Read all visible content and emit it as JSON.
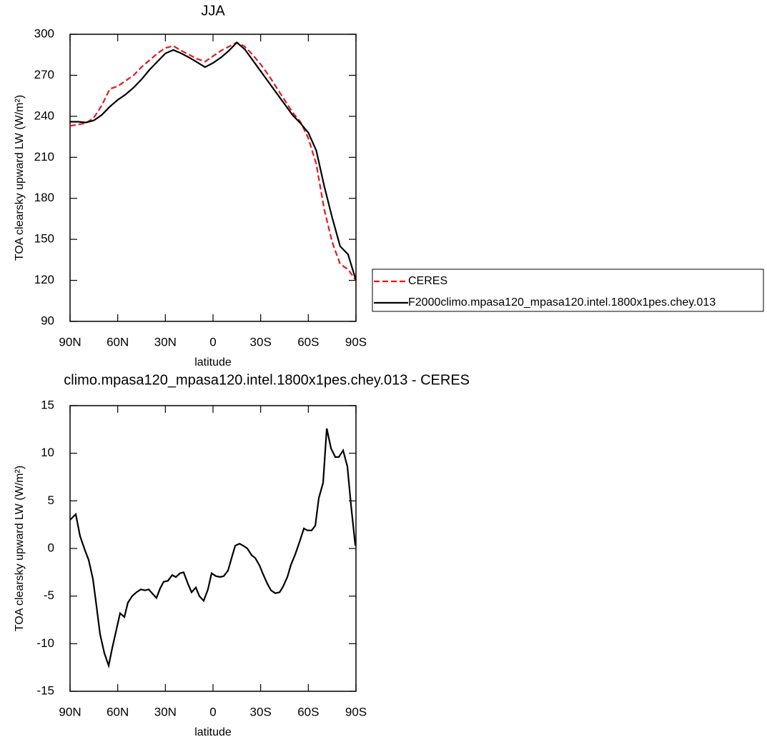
{
  "chart_data": [
    {
      "type": "line",
      "title": "JJA",
      "xlabel": "latitude",
      "ylabel": "TOA clearsky upward LW (W/m²)",
      "xlim": [
        90,
        -90
      ],
      "xticks": [
        {
          "value": 90,
          "label": "90N"
        },
        {
          "value": 60,
          "label": "60N"
        },
        {
          "value": 30,
          "label": "30N"
        },
        0,
        {
          "value": -30,
          "label": "30S"
        },
        {
          "value": -60,
          "label": "60S"
        },
        {
          "value": -90,
          "label": "90S"
        }
      ],
      "ylim": [
        90,
        300
      ],
      "yticks": [
        90,
        120,
        150,
        180,
        210,
        240,
        270,
        300
      ],
      "legend": "right",
      "x": [
        90,
        85,
        80,
        75,
        70,
        65,
        60,
        55,
        50,
        45,
        40,
        35,
        30,
        25,
        20,
        15,
        10,
        5,
        0,
        -5,
        -10,
        -15,
        -20,
        -25,
        -30,
        -35,
        -40,
        -45,
        -50,
        -55,
        -60,
        -65,
        -70,
        -75,
        -80,
        -85,
        -90
      ],
      "series": [
        {
          "name": "CERES",
          "color": "#e41a1c",
          "line_style": "dashed",
          "values": [
            233,
            234,
            235,
            239,
            248,
            260,
            262,
            266,
            270,
            276,
            281,
            286,
            290,
            291.5,
            288,
            285,
            282,
            280,
            284,
            288,
            291,
            294,
            291,
            285,
            278,
            270,
            261,
            252,
            243,
            236,
            224,
            205,
            172,
            148,
            132,
            128,
            120
          ]
        },
        {
          "name": "F2000climo.mpasa120_mpasa120.intel.1800x1pes.chey.013",
          "color": "#000000",
          "line_style": "solid",
          "values": [
            236,
            236,
            235.5,
            237,
            241,
            247,
            252,
            256,
            261,
            267,
            274,
            280,
            286,
            288.5,
            286,
            283,
            279.5,
            276,
            279,
            283,
            288,
            294,
            289,
            281,
            273,
            265,
            257,
            249,
            241,
            235,
            228,
            215,
            189,
            166,
            145,
            139,
            120
          ]
        }
      ]
    },
    {
      "type": "line",
      "title": "climo.mpasa120_mpasa120.intel.1800x1pes.chey.013 - CERES",
      "xlabel": "latitude",
      "ylabel": "TOA clearsky upward LW (W/m²)",
      "xlim": [
        90,
        -90
      ],
      "xticks": [
        {
          "value": 90,
          "label": "90N"
        },
        {
          "value": 60,
          "label": "60N"
        },
        {
          "value": 30,
          "label": "30N"
        },
        0,
        {
          "value": -30,
          "label": "30S"
        },
        {
          "value": -60,
          "label": "60S"
        },
        {
          "value": -90,
          "label": "90S"
        }
      ],
      "ylim": [
        -15,
        15
      ],
      "yticks": [
        -15,
        -10,
        -5,
        0,
        5,
        10,
        15
      ],
      "color": "#000000",
      "x": [
        90,
        86.4,
        83.7,
        80.6,
        78.3,
        75.6,
        73.4,
        71.1,
        68.4,
        65.7,
        63.5,
        60.8,
        58.5,
        55.8,
        53.6,
        50.9,
        48.2,
        45.5,
        42.8,
        40.5,
        37.8,
        35.6,
        33.3,
        31.1,
        28.4,
        25.7,
        23.4,
        20.7,
        18.5,
        15.8,
        13.5,
        10.8,
        8.6,
        5.9,
        3.2,
        0.9,
        -1.8,
        -4.5,
        -6.8,
        -9.5,
        -11.7,
        -14,
        -16.7,
        -18.9,
        -21.6,
        -24.3,
        -26.6,
        -29.3,
        -31.5,
        -34.2,
        -36.5,
        -39.2,
        -41.9,
        -44.1,
        -46.8,
        -49.1,
        -51.8,
        -54.5,
        -57.2,
        -59.4,
        -62.1,
        -64.4,
        -66.6,
        -69.3,
        -71.6,
        -74.3,
        -77,
        -79.2,
        -81.9,
        -84.6,
        -86.9,
        -89.6
      ],
      "values": [
        3.0,
        3.6,
        1.3,
        -0.2,
        -1.2,
        -3.2,
        -6,
        -9,
        -11,
        -12.3,
        -10.5,
        -8.5,
        -6.8,
        -7.2,
        -5.7,
        -5.0,
        -4.6,
        -4.3,
        -4.4,
        -4.3,
        -4.8,
        -5.2,
        -4.2,
        -3.5,
        -3.4,
        -2.8,
        -3.0,
        -2.6,
        -2.5,
        -3.7,
        -4.6,
        -4.1,
        -5.0,
        -5.5,
        -4.3,
        -2.6,
        -2.9,
        -3.0,
        -2.9,
        -2.3,
        -1.0,
        0.3,
        0.5,
        0.3,
        0,
        -0.7,
        -1.0,
        -1.8,
        -2.7,
        -3.7,
        -4.4,
        -4.7,
        -4.6,
        -4.0,
        -3.0,
        -1.7,
        -0.6,
        0.7,
        2.1,
        1.9,
        1.9,
        2.4,
        5.3,
        6.9,
        12.6,
        10.5,
        9.6,
        9.6,
        10.3,
        8.6,
        4.5,
        0.3
      ]
    }
  ]
}
